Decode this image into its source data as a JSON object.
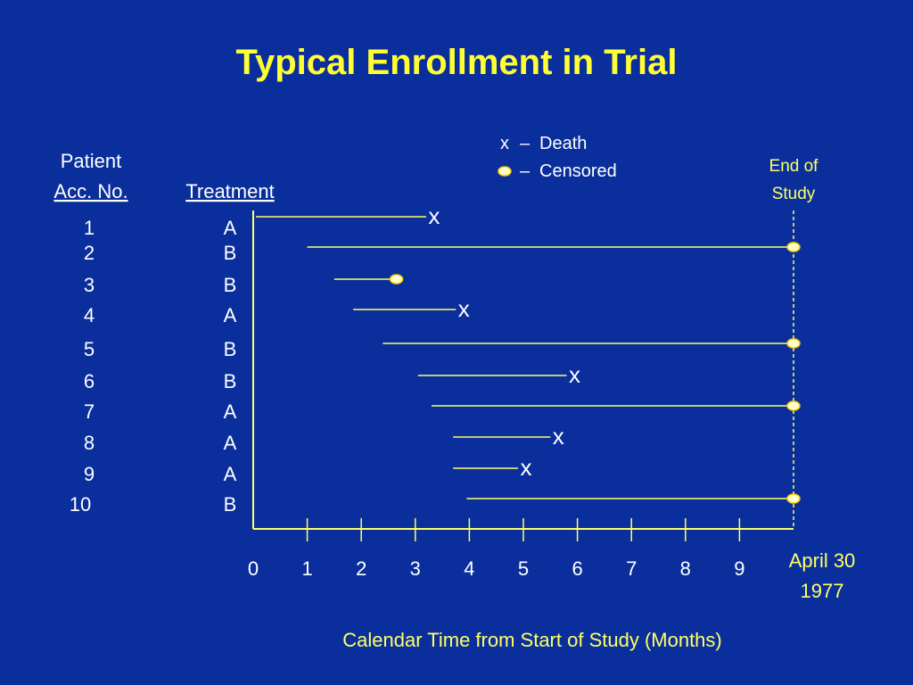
{
  "title": "Typical Enrollment in Trial",
  "legend": {
    "death_symbol": "x",
    "death_dash": "–",
    "death_label": "Death",
    "censored_dash": "–",
    "censored_label": "Censored"
  },
  "headers": {
    "patient_line1": "Patient",
    "patient_line2": "Acc. No.",
    "treatment": "Treatment",
    "end_of_study_line1": "End of",
    "end_of_study_line2": "Study"
  },
  "end_date": {
    "line1": "April 30",
    "line2": "1977"
  },
  "colors": {
    "background": "#0a2f9c",
    "title": "#ffff33",
    "text": "#ffffff",
    "lines": "#ffff66",
    "censored_marker_fill": "#ffffcc",
    "censored_marker_stroke": "#ffcc00"
  },
  "chart_data": {
    "type": "timeline",
    "xlabel": "Calendar Time from Start of Study (Months)",
    "ylabel": "",
    "xlim": [
      0,
      10
    ],
    "x_ticks": [
      "0",
      "1",
      "2",
      "3",
      "4",
      "5",
      "6",
      "7",
      "8",
      "9"
    ],
    "end_of_study_x": 10,
    "patients": [
      {
        "acc_no": "1",
        "treatment": "A",
        "start": 0.05,
        "end": 3.2,
        "outcome": "death"
      },
      {
        "acc_no": "2",
        "treatment": "B",
        "start": 1.0,
        "end": 10,
        "outcome": "censored"
      },
      {
        "acc_no": "3",
        "treatment": "B",
        "start": 1.5,
        "end": 2.65,
        "outcome": "censored"
      },
      {
        "acc_no": "4",
        "treatment": "A",
        "start": 1.85,
        "end": 3.75,
        "outcome": "death"
      },
      {
        "acc_no": "5",
        "treatment": "B",
        "start": 2.4,
        "end": 10,
        "outcome": "censored"
      },
      {
        "acc_no": "6",
        "treatment": "B",
        "start": 3.05,
        "end": 5.8,
        "outcome": "death"
      },
      {
        "acc_no": "7",
        "treatment": "A",
        "start": 3.3,
        "end": 10,
        "outcome": "censored"
      },
      {
        "acc_no": "8",
        "treatment": "A",
        "start": 3.7,
        "end": 5.5,
        "outcome": "death"
      },
      {
        "acc_no": "9",
        "treatment": "A",
        "start": 3.7,
        "end": 4.9,
        "outcome": "death"
      },
      {
        "acc_no": "10",
        "treatment": "B",
        "start": 3.95,
        "end": 10,
        "outcome": "censored"
      }
    ]
  }
}
